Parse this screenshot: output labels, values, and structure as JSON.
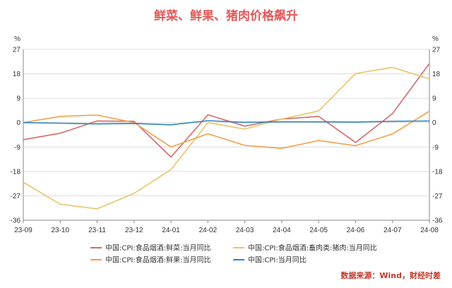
{
  "title": "鲜菜、鲜果、猪肉价格飙升",
  "title_color": "#e05a5a",
  "source": "数据来源：Wind，财经时差",
  "source_color": "#c0392b",
  "chart_data": {
    "type": "line",
    "left_unit": "%",
    "right_unit": "%",
    "categories": [
      "23-09",
      "23-10",
      "23-11",
      "23-12",
      "24-01",
      "24-02",
      "24-03",
      "24-04",
      "24-05",
      "24-06",
      "24-07",
      "24-08"
    ],
    "y_ticks": [
      "27",
      "18",
      "9",
      "0",
      "-9",
      "-18",
      "-27",
      "-36"
    ],
    "ylim": [
      -36,
      27
    ],
    "grid": true,
    "legend_position": "bottom",
    "series": [
      {
        "name": "中国:CPI:食品烟酒:鲜菜:当月同比",
        "color": "#d46a6a",
        "values": [
          -6.3,
          -3.9,
          0.6,
          0.5,
          -12.7,
          2.9,
          -1.3,
          1.3,
          2.3,
          -7.3,
          3.3,
          21.8
        ]
      },
      {
        "name": "中国:CPI:食品烟酒:畜肉类:猪肉:当月同比",
        "color": "#e9c46a",
        "values": [
          -22.0,
          -30.1,
          -31.8,
          -26.1,
          -17.3,
          0.0,
          -2.4,
          1.3,
          4.3,
          18.1,
          20.4,
          16.1
        ]
      },
      {
        "name": "中国:CPI:食品烟酒:鲜果:当月同比",
        "color": "#f0a04b",
        "values": [
          0.0,
          2.3,
          2.8,
          0.0,
          -9.0,
          -4.1,
          -8.4,
          -9.5,
          -6.6,
          -8.5,
          -4.2,
          4.2
        ]
      },
      {
        "name": "中国:CPI:当月同比",
        "color": "#2e86c1",
        "values": [
          0.0,
          -0.2,
          -0.5,
          -0.3,
          -0.8,
          0.7,
          0.1,
          0.3,
          0.3,
          0.2,
          0.5,
          0.6
        ]
      }
    ]
  }
}
